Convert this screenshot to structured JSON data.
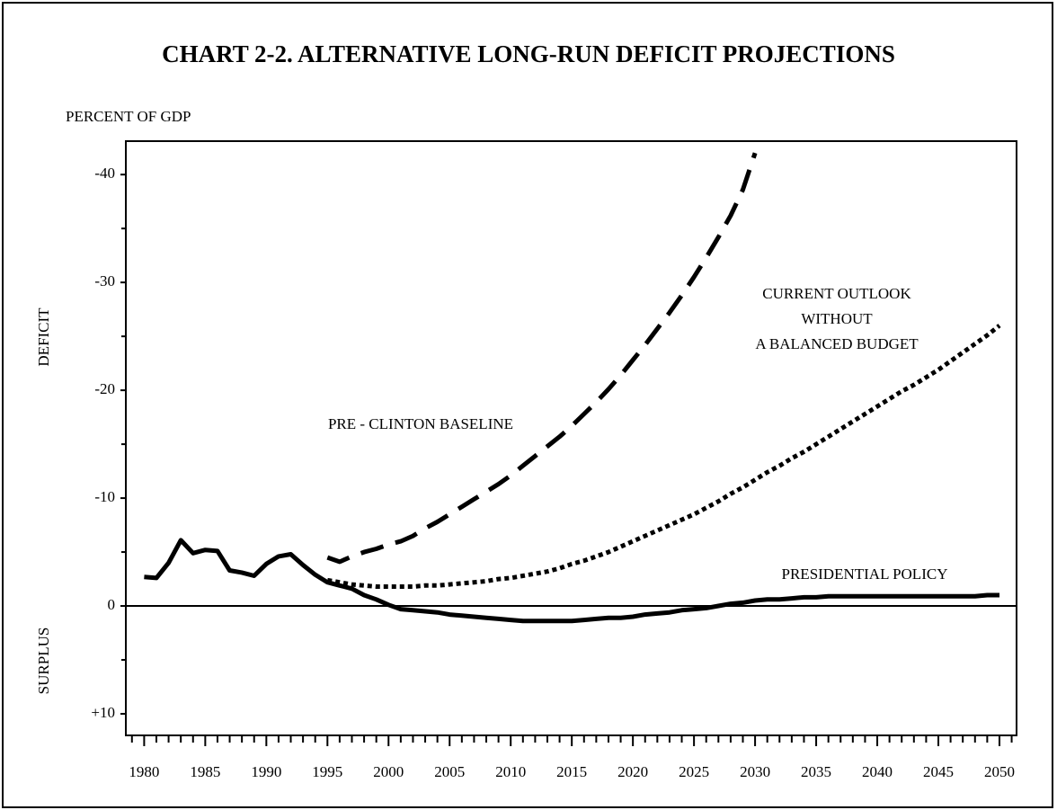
{
  "chart_data": {
    "type": "line",
    "title": "CHART 2-2.  ALTERNATIVE LONG-RUN DEFICIT PROJECTIONS",
    "y_axis_unit": "PERCENT OF GDP",
    "y_axis_labels": [
      "DEFICIT",
      "SURPLUS"
    ],
    "annotations": [
      "PRE - CLINTON BASELINE",
      [
        "CURRENT OUTLOOK",
        "WITHOUT",
        "A BALANCED BUDGET"
      ],
      "PRESIDENTIAL POLICY"
    ],
    "x": [
      1980,
      1981,
      1982,
      1983,
      1984,
      1985,
      1986,
      1987,
      1988,
      1989,
      1990,
      1991,
      1992,
      1993,
      1994,
      1995,
      1996,
      1997,
      1998,
      1999,
      2000,
      2001,
      2002,
      2003,
      2004,
      2005,
      2006,
      2007,
      2008,
      2009,
      2010,
      2011,
      2012,
      2013,
      2014,
      2015,
      2016,
      2017,
      2018,
      2019,
      2020,
      2021,
      2022,
      2023,
      2024,
      2025,
      2026,
      2027,
      2028,
      2029,
      2030,
      2031,
      2032,
      2033,
      2034,
      2035,
      2036,
      2037,
      2038,
      2039,
      2040,
      2041,
      2042,
      2043,
      2044,
      2045,
      2046,
      2047,
      2048,
      2049,
      2050
    ],
    "series": [
      {
        "name": "PRESIDENTIAL POLICY",
        "color": "#000000",
        "style": "solid",
        "values": [
          -2.7,
          -2.6,
          -4.0,
          -6.1,
          -4.9,
          -5.2,
          -5.1,
          -3.3,
          -3.1,
          -2.8,
          -3.9,
          -4.6,
          -4.8,
          -3.8,
          -2.9,
          -2.2,
          -1.9,
          -1.6,
          -1.0,
          -0.6,
          -0.1,
          0.3,
          0.4,
          0.5,
          0.6,
          0.8,
          0.9,
          1.0,
          1.1,
          1.2,
          1.3,
          1.4,
          1.4,
          1.4,
          1.4,
          1.4,
          1.3,
          1.2,
          1.1,
          1.1,
          1.0,
          0.8,
          0.7,
          0.6,
          0.4,
          0.3,
          0.2,
          0,
          -0.2,
          -0.3,
          -0.5,
          -0.6,
          -0.6,
          -0.7,
          -0.8,
          -0.8,
          -0.9,
          -0.9,
          -0.9,
          -0.9,
          -0.9,
          -0.9,
          -0.9,
          -0.9,
          -0.9,
          -0.9,
          -0.9,
          -0.9,
          -0.9,
          -1.0,
          -1.0
        ]
      },
      {
        "name": "PRE - CLINTON BASELINE",
        "color": "#000000",
        "style": "dashed",
        "values": [
          null,
          null,
          null,
          null,
          null,
          null,
          null,
          null,
          null,
          null,
          null,
          null,
          null,
          null,
          null,
          -4.5,
          -4.1,
          -4.6,
          -5.0,
          -5.3,
          -5.7,
          -6.0,
          -6.5,
          -7.2,
          -7.8,
          -8.5,
          -9.2,
          -9.9,
          -10.6,
          -11.3,
          -12.1,
          -13.0,
          -13.9,
          -14.8,
          -15.7,
          -16.7,
          -17.8,
          -18.9,
          -20.1,
          -21.4,
          -22.8,
          -24.2,
          -25.7,
          -27.2,
          -28.8,
          -30.5,
          -32.3,
          -34.2,
          -36.2,
          -38.6,
          -42.0,
          null,
          null,
          null,
          null,
          null,
          null,
          null,
          null,
          null,
          null,
          null,
          null,
          null,
          null,
          null,
          null,
          null,
          null,
          null,
          null
        ]
      },
      {
        "name": "CURRENT OUTLOOK WITHOUT A BALANCED BUDGET",
        "color": "#000000",
        "style": "dotted",
        "values": [
          null,
          null,
          null,
          null,
          null,
          null,
          null,
          null,
          null,
          null,
          null,
          null,
          null,
          null,
          null,
          -2.4,
          -2.2,
          -2.0,
          -1.9,
          -1.8,
          -1.8,
          -1.8,
          -1.8,
          -1.9,
          -1.9,
          -2.0,
          -2.1,
          -2.2,
          -2.3,
          -2.5,
          -2.6,
          -2.8,
          -3.0,
          -3.2,
          -3.5,
          -3.9,
          -4.2,
          -4.6,
          -5.0,
          -5.5,
          -6.0,
          -6.5,
          -7.0,
          -7.5,
          -8.0,
          -8.5,
          -9.1,
          -9.7,
          -10.4,
          -11.0,
          -11.7,
          -12.4,
          -13.0,
          -13.7,
          -14.3,
          -15.0,
          -15.7,
          -16.4,
          -17.1,
          -17.8,
          -18.5,
          -19.2,
          -19.9,
          -20.5,
          -21.2,
          -21.9,
          -22.7,
          -23.5,
          -24.3,
          -25.1,
          -26.0
        ]
      }
    ],
    "xlim": [
      1978.5,
      2051.4
    ],
    "xticks": [
      1980,
      1985,
      1990,
      1995,
      2000,
      2005,
      2010,
      2015,
      2020,
      2025,
      2030,
      2035,
      2040,
      2045,
      2050
    ],
    "xminor_step": 1,
    "ylim": [
      12,
      -43.1
    ],
    "yticks": [
      -40,
      -30,
      -20,
      -10,
      0,
      {
        "value": 10,
        "label": "+10"
      }
    ],
    "yminor_step": 5,
    "zero_line": true
  }
}
